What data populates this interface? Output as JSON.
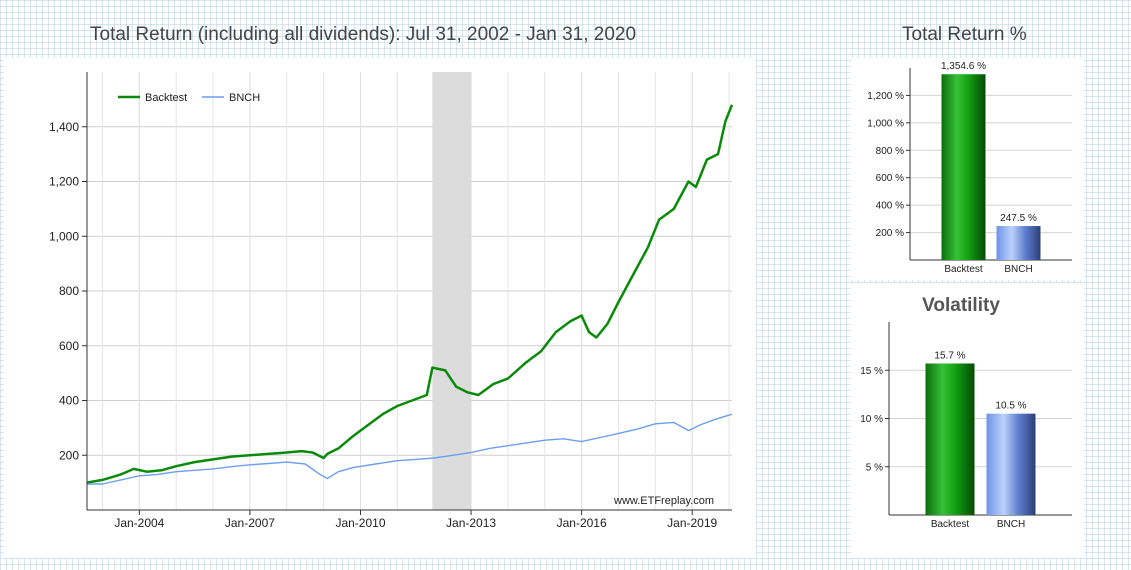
{
  "main_title": "Total Return (including all dividends): Jul 31, 2002 - Jan 31, 2020",
  "tr_title": "Total Return %",
  "vol_title": "Volatility",
  "watermark": "www.ETFreplay.com",
  "colors": {
    "backtest": "#0a8a0a",
    "bench": "#6d9ef0",
    "shade": "#dcdcdc",
    "grid": "#cfcfcf"
  },
  "chart_data": [
    {
      "type": "line",
      "title": "Total Return (including all dividends): Jul 31, 2002 - Jan 31, 2020",
      "xlim": [
        2002.58,
        2020.08
      ],
      "ylim": [
        0,
        1600
      ],
      "x_ticks": [
        {
          "x": 2004.0,
          "label": "Jan-2004"
        },
        {
          "x": 2007.0,
          "label": "Jan-2007"
        },
        {
          "x": 2010.0,
          "label": "Jan-2010"
        },
        {
          "x": 2013.0,
          "label": "Jan-2013"
        },
        {
          "x": 2016.0,
          "label": "Jan-2016"
        },
        {
          "x": 2019.0,
          "label": "Jan-2019"
        }
      ],
      "y_ticks": [
        {
          "v": 200,
          "label": "200"
        },
        {
          "v": 400,
          "label": "400"
        },
        {
          "v": 600,
          "label": "600"
        },
        {
          "v": 800,
          "label": "800"
        },
        {
          "v": 1000,
          "label": "1,000"
        },
        {
          "v": 1200,
          "label": "1,200"
        },
        {
          "v": 1400,
          "label": "1,400"
        }
      ],
      "shaded_region": [
        2011.95,
        2013.0
      ],
      "legend": "top-left",
      "series": [
        {
          "name": "Backtest",
          "color": "#0a8a0a",
          "points": [
            [
              2002.58,
              100
            ],
            [
              2003.0,
              110
            ],
            [
              2003.5,
              130
            ],
            [
              2003.85,
              150
            ],
            [
              2004.2,
              140
            ],
            [
              2004.6,
              145
            ],
            [
              2005.0,
              160
            ],
            [
              2005.5,
              175
            ],
            [
              2006.0,
              185
            ],
            [
              2006.5,
              195
            ],
            [
              2007.0,
              200
            ],
            [
              2007.5,
              205
            ],
            [
              2008.0,
              210
            ],
            [
              2008.4,
              215
            ],
            [
              2008.7,
              210
            ],
            [
              2009.0,
              190
            ],
            [
              2009.1,
              205
            ],
            [
              2009.4,
              225
            ],
            [
              2009.8,
              270
            ],
            [
              2010.2,
              310
            ],
            [
              2010.6,
              350
            ],
            [
              2011.0,
              380
            ],
            [
              2011.4,
              400
            ],
            [
              2011.8,
              420
            ],
            [
              2011.95,
              520
            ],
            [
              2012.3,
              510
            ],
            [
              2012.6,
              450
            ],
            [
              2012.9,
              430
            ],
            [
              2013.2,
              420
            ],
            [
              2013.6,
              460
            ],
            [
              2014.0,
              480
            ],
            [
              2014.5,
              540
            ],
            [
              2014.9,
              580
            ],
            [
              2015.3,
              650
            ],
            [
              2015.7,
              690
            ],
            [
              2016.0,
              710
            ],
            [
              2016.2,
              650
            ],
            [
              2016.4,
              630
            ],
            [
              2016.7,
              680
            ],
            [
              2017.0,
              760
            ],
            [
              2017.4,
              860
            ],
            [
              2017.8,
              960
            ],
            [
              2018.1,
              1060
            ],
            [
              2018.5,
              1100
            ],
            [
              2018.9,
              1200
            ],
            [
              2019.1,
              1180
            ],
            [
              2019.4,
              1280
            ],
            [
              2019.7,
              1300
            ],
            [
              2019.9,
              1420
            ],
            [
              2020.08,
              1480
            ]
          ]
        },
        {
          "name": "BNCH",
          "color": "#6d9ef0",
          "points": [
            [
              2002.58,
              95
            ],
            [
              2003.0,
              95
            ],
            [
              2003.5,
              110
            ],
            [
              2004.0,
              125
            ],
            [
              2004.5,
              130
            ],
            [
              2005.0,
              140
            ],
            [
              2005.5,
              145
            ],
            [
              2006.0,
              150
            ],
            [
              2006.5,
              158
            ],
            [
              2007.0,
              165
            ],
            [
              2007.5,
              170
            ],
            [
              2008.0,
              175
            ],
            [
              2008.5,
              168
            ],
            [
              2008.9,
              130
            ],
            [
              2009.1,
              115
            ],
            [
              2009.4,
              140
            ],
            [
              2009.8,
              155
            ],
            [
              2010.5,
              170
            ],
            [
              2011.0,
              180
            ],
            [
              2011.5,
              185
            ],
            [
              2012.0,
              190
            ],
            [
              2012.5,
              200
            ],
            [
              2013.0,
              210
            ],
            [
              2013.5,
              225
            ],
            [
              2014.0,
              235
            ],
            [
              2014.5,
              245
            ],
            [
              2015.0,
              255
            ],
            [
              2015.5,
              260
            ],
            [
              2016.0,
              250
            ],
            [
              2016.5,
              265
            ],
            [
              2017.0,
              280
            ],
            [
              2017.5,
              295
            ],
            [
              2018.0,
              315
            ],
            [
              2018.5,
              320
            ],
            [
              2018.9,
              290
            ],
            [
              2019.2,
              310
            ],
            [
              2019.6,
              330
            ],
            [
              2020.08,
              350
            ]
          ]
        }
      ]
    },
    {
      "type": "bar",
      "title": "Total Return %",
      "categories": [
        "Backtest",
        "BNCH"
      ],
      "values": [
        1354.6,
        247.5
      ],
      "value_labels": [
        "1,354.6 %",
        "247.5 %"
      ],
      "ylim": [
        0,
        1400
      ],
      "y_ticks": [
        {
          "v": 200,
          "label": "200 %"
        },
        {
          "v": 400,
          "label": "400 %"
        },
        {
          "v": 600,
          "label": "600 %"
        },
        {
          "v": 800,
          "label": "800 %"
        },
        {
          "v": 1000,
          "label": "1,000 %"
        },
        {
          "v": 1200,
          "label": "1,200 %"
        }
      ]
    },
    {
      "type": "bar",
      "title": "Volatility",
      "categories": [
        "Backtest",
        "BNCH"
      ],
      "values": [
        15.7,
        10.5
      ],
      "value_labels": [
        "15.7 %",
        "10.5 %"
      ],
      "ylim": [
        0,
        20
      ],
      "y_ticks": [
        {
          "v": 5,
          "label": "5 %"
        },
        {
          "v": 10,
          "label": "10 %"
        },
        {
          "v": 15,
          "label": "15 %"
        }
      ]
    }
  ]
}
